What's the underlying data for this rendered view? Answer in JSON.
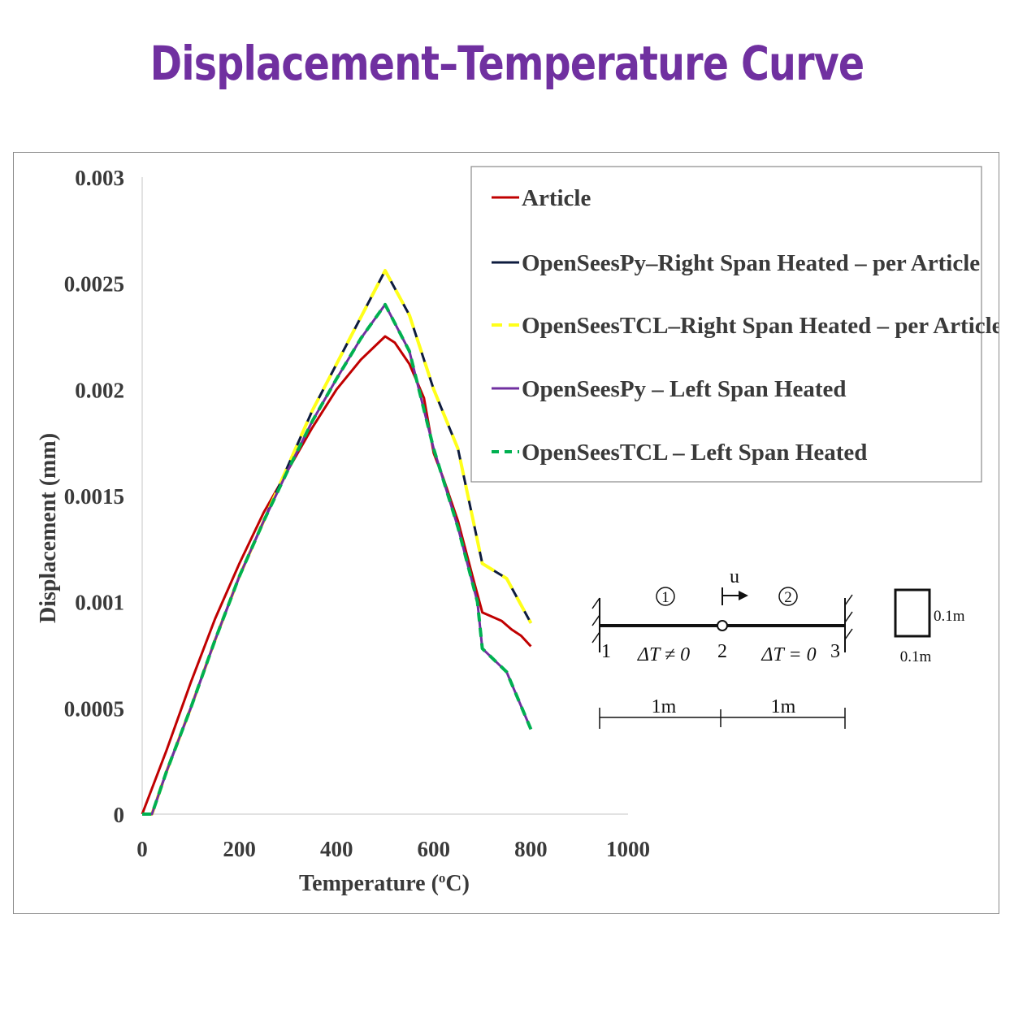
{
  "title": "Displacement–Temperature Curve",
  "colors": {
    "title": "#7030a0",
    "article": "#c00000",
    "openseespy_right": "#0d1b3e",
    "opensees_tcl_right": "#ffff1a",
    "openseespy_left": "#7030a0",
    "opensees_tcl_left": "#00b050"
  },
  "chart_data": {
    "type": "line",
    "xlabel": "Temperature (",
    "xlabel_sup": "o",
    "xlabel_end": "C)",
    "ylabel": "Displacement (mm)",
    "xlim": [
      0,
      1000
    ],
    "ylim": [
      0,
      0.003
    ],
    "x_ticks": [
      "0",
      "200",
      "400",
      "600",
      "800",
      "1000"
    ],
    "y_ticks": [
      "0",
      "0.0005",
      "0.001",
      "0.0015",
      "0.002",
      "0.0025",
      "0.003"
    ],
    "grid": false,
    "legend_position": "top-right",
    "series": [
      {
        "name": "Article",
        "color": "#c00000",
        "dash": "solid",
        "points": [
          [
            0,
            0
          ],
          [
            50,
            0.0003
          ],
          [
            100,
            0.00062
          ],
          [
            150,
            0.00092
          ],
          [
            200,
            0.00118
          ],
          [
            250,
            0.00142
          ],
          [
            300,
            0.00162
          ],
          [
            350,
            0.00182
          ],
          [
            400,
            0.002
          ],
          [
            450,
            0.00214
          ],
          [
            500,
            0.00225
          ],
          [
            520,
            0.00222
          ],
          [
            550,
            0.00212
          ],
          [
            580,
            0.00196
          ],
          [
            600,
            0.0017
          ],
          [
            620,
            0.00158
          ],
          [
            650,
            0.00138
          ],
          [
            680,
            0.00112
          ],
          [
            700,
            0.00095
          ],
          [
            740,
            0.00091
          ],
          [
            760,
            0.00087
          ],
          [
            780,
            0.00084
          ],
          [
            800,
            0.00079
          ]
        ]
      },
      {
        "name": "OpenSeesPy–Right Span Heated – per Article",
        "color": "#0d1b3e",
        "dash": "solid",
        "points": [
          [
            0,
            0
          ],
          [
            20,
            0
          ],
          [
            50,
            0.0002
          ],
          [
            100,
            0.0005
          ],
          [
            150,
            0.00082
          ],
          [
            200,
            0.00112
          ],
          [
            250,
            0.00138
          ],
          [
            300,
            0.00164
          ],
          [
            350,
            0.0019
          ],
          [
            400,
            0.00212
          ],
          [
            450,
            0.00234
          ],
          [
            500,
            0.00256
          ],
          [
            550,
            0.00235
          ],
          [
            600,
            0.002
          ],
          [
            650,
            0.00172
          ],
          [
            700,
            0.00118
          ],
          [
            750,
            0.00111
          ],
          [
            800,
            0.0009
          ]
        ]
      },
      {
        "name": "OpenSeesTCL–Right Span Heated – per Article",
        "color": "#ffff1a",
        "dash": "dashed",
        "points": [
          [
            0,
            0
          ],
          [
            20,
            0
          ],
          [
            50,
            0.0002
          ],
          [
            100,
            0.0005
          ],
          [
            150,
            0.00082
          ],
          [
            200,
            0.00112
          ],
          [
            250,
            0.00138
          ],
          [
            300,
            0.00164
          ],
          [
            350,
            0.0019
          ],
          [
            400,
            0.00212
          ],
          [
            450,
            0.00234
          ],
          [
            500,
            0.00256
          ],
          [
            550,
            0.00235
          ],
          [
            600,
            0.002
          ],
          [
            650,
            0.00172
          ],
          [
            700,
            0.00118
          ],
          [
            750,
            0.00111
          ],
          [
            800,
            0.0009
          ]
        ]
      },
      {
        "name": "OpenSeesPy – Left Span Heated",
        "color": "#7030a0",
        "dash": "solid",
        "points": [
          [
            0,
            0
          ],
          [
            20,
            0
          ],
          [
            50,
            0.0002
          ],
          [
            100,
            0.0005
          ],
          [
            150,
            0.00082
          ],
          [
            200,
            0.00112
          ],
          [
            250,
            0.00138
          ],
          [
            300,
            0.00162
          ],
          [
            350,
            0.00185
          ],
          [
            400,
            0.00205
          ],
          [
            450,
            0.00224
          ],
          [
            500,
            0.0024
          ],
          [
            550,
            0.00218
          ],
          [
            600,
            0.00172
          ],
          [
            650,
            0.00135
          ],
          [
            690,
            0.001
          ],
          [
            700,
            0.00078
          ],
          [
            750,
            0.00067
          ],
          [
            800,
            0.0004
          ]
        ]
      },
      {
        "name": "OpenSeesTCL – Left Span Heated",
        "color": "#00b050",
        "dash": "dashed",
        "points": [
          [
            0,
            0
          ],
          [
            20,
            0
          ],
          [
            50,
            0.0002
          ],
          [
            100,
            0.0005
          ],
          [
            150,
            0.00082
          ],
          [
            200,
            0.00112
          ],
          [
            250,
            0.00138
          ],
          [
            300,
            0.00162
          ],
          [
            350,
            0.00185
          ],
          [
            400,
            0.00205
          ],
          [
            450,
            0.00224
          ],
          [
            500,
            0.0024
          ],
          [
            550,
            0.00218
          ],
          [
            600,
            0.00172
          ],
          [
            650,
            0.00135
          ],
          [
            690,
            0.001
          ],
          [
            700,
            0.00078
          ],
          [
            750,
            0.00067
          ],
          [
            800,
            0.0004
          ]
        ]
      }
    ]
  },
  "diagram": {
    "element_1": "1",
    "element_2": "2",
    "disp_label": "u",
    "node_1": "1",
    "node_2": "2",
    "node_3": "3",
    "delta_t_left": "ΔT ≠ 0",
    "delta_t_right": "ΔT = 0",
    "span_left": "1m",
    "span_right": "1m",
    "section_height": "0.1m",
    "section_width": "0.1m"
  }
}
